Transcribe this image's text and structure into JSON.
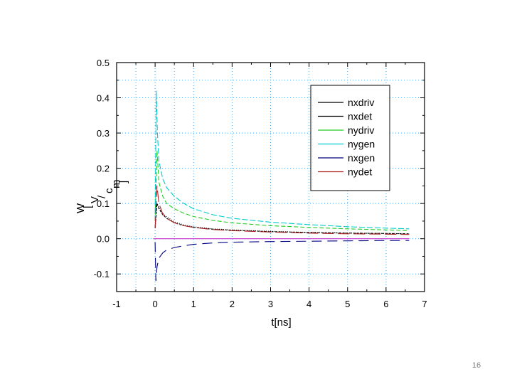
{
  "slide": {
    "page_number": "16"
  },
  "chart_data": {
    "type": "line",
    "title": "",
    "xlabel": "t[ns]",
    "ylabel": "W [V/cm]",
    "ylabel_lines": [
      "W",
      "[",
      "V",
      "/",
      "c",
      "m",
      "]"
    ],
    "xlim": [
      -1,
      7
    ],
    "ylim": [
      -0.15,
      0.5
    ],
    "xticks": [
      -1,
      0,
      1,
      2,
      3,
      4,
      5,
      6,
      7
    ],
    "yticks": [
      -0.1,
      0.0,
      0.1,
      0.2,
      0.3,
      0.4,
      0.5
    ],
    "xtick_labels": [
      "-1",
      "0",
      "1",
      "2",
      "3",
      "4",
      "5",
      "6",
      "7"
    ],
    "ytick_labels": [
      "-0.1",
      "0.0",
      "0.1",
      "0.2",
      "0.3",
      "0.4",
      "0.5"
    ],
    "grid": true,
    "legend_position": "top-right",
    "series": [
      {
        "name": "nxdriv",
        "color": "#000000",
        "dash": "3 2",
        "x": [
          0.0,
          0.05,
          0.1,
          0.2,
          0.3,
          0.5,
          0.75,
          1.0,
          1.5,
          2.0,
          3.0,
          4.0,
          5.0,
          6.0,
          6.6
        ],
        "y": [
          0.03,
          0.1,
          0.085,
          0.068,
          0.058,
          0.045,
          0.037,
          0.032,
          0.027,
          0.024,
          0.02,
          0.018,
          0.016,
          0.015,
          0.014
        ]
      },
      {
        "name": "nxdet",
        "color": "#000000",
        "dash": "1 2",
        "x": [
          0.0,
          0.05,
          0.1,
          0.2,
          0.3,
          0.5,
          0.75,
          1.0,
          1.5,
          2.0,
          3.0,
          4.0,
          5.0,
          6.0,
          6.6
        ],
        "y": [
          0.03,
          0.1,
          0.088,
          0.072,
          0.062,
          0.048,
          0.039,
          0.034,
          0.028,
          0.025,
          0.021,
          0.018,
          0.016,
          0.015,
          0.014
        ]
      },
      {
        "name": "nydriv",
        "color": "#22cc22",
        "dash": "6 3",
        "x": [
          0.0,
          0.05,
          0.1,
          0.2,
          0.3,
          0.5,
          0.75,
          1.0,
          1.5,
          2.0,
          3.0,
          4.0,
          5.0,
          6.0,
          6.6
        ],
        "y": [
          0.05,
          0.25,
          0.16,
          0.12,
          0.1,
          0.085,
          0.072,
          0.063,
          0.052,
          0.045,
          0.037,
          0.032,
          0.028,
          0.025,
          0.023
        ]
      },
      {
        "name": "nygen",
        "color": "#00cccc",
        "dash": "8 3",
        "x": [
          0.0,
          0.03,
          0.06,
          0.1,
          0.2,
          0.3,
          0.5,
          0.75,
          1.0,
          1.5,
          2.0,
          3.0,
          4.0,
          5.0,
          6.0,
          6.6
        ],
        "y": [
          0.05,
          0.42,
          0.3,
          0.22,
          0.17,
          0.145,
          0.12,
          0.1,
          0.085,
          0.068,
          0.058,
          0.047,
          0.04,
          0.034,
          0.03,
          0.028
        ]
      },
      {
        "name": "nxgen",
        "color": "#000080",
        "dash": "14 8",
        "x": [
          0.0,
          0.02,
          0.05,
          0.1,
          0.2,
          0.3,
          0.5,
          0.75,
          1.0,
          1.5,
          2.0,
          3.0,
          4.0,
          5.0,
          6.0,
          6.6
        ],
        "y": [
          -0.01,
          -0.12,
          -0.08,
          -0.055,
          -0.04,
          -0.032,
          -0.025,
          -0.02,
          -0.016,
          -0.012,
          -0.01,
          -0.008,
          -0.007,
          -0.006,
          -0.005,
          -0.005
        ]
      },
      {
        "name": "nydet",
        "color": "#aa2222",
        "dash": "16 6",
        "x": [
          0.0,
          0.05,
          0.1,
          0.2,
          0.3,
          0.5,
          0.75,
          1.0,
          1.5,
          2.0,
          3.0,
          4.0,
          5.0,
          6.0,
          6.6
        ],
        "y": [
          0.03,
          0.15,
          0.1,
          0.07,
          0.058,
          0.045,
          0.037,
          0.032,
          0.026,
          0.023,
          0.019,
          0.016,
          0.014,
          0.013,
          0.012
        ]
      },
      {
        "name": "",
        "color": "#cc33cc",
        "dash": "",
        "x": [
          -0.05,
          6.6
        ],
        "y": [
          0.0,
          0.0
        ]
      }
    ]
  }
}
